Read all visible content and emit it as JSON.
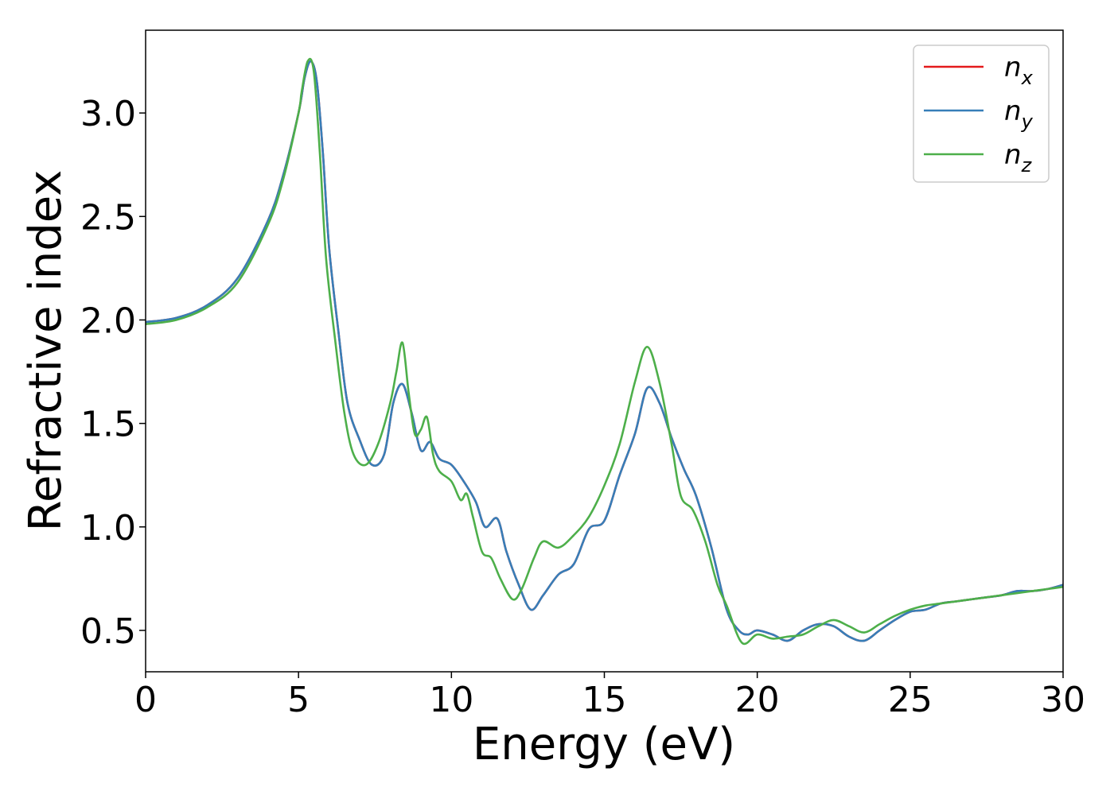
{
  "chart_data": {
    "type": "line",
    "xlabel": "Energy (eV)",
    "ylabel": "Refractive index",
    "xlim": [
      0,
      30
    ],
    "ylim": [
      0.3,
      3.4
    ],
    "x_ticks": [
      "0",
      "5",
      "10",
      "15",
      "20",
      "25",
      "30"
    ],
    "y_ticks": [
      "0.5",
      "1.0",
      "1.5",
      "2.0",
      "2.5",
      "3.0"
    ],
    "grid": false,
    "legend_position": "top-right",
    "series": [
      {
        "name": "n_x",
        "legend_base": "n",
        "legend_sub": "x",
        "color": "#e41a1c",
        "x": [
          0,
          1,
          2,
          3,
          4,
          4.5,
          5,
          5.2,
          5.4,
          5.6,
          5.8,
          6.0,
          6.3,
          6.6,
          7.0,
          7.4,
          7.8,
          8.1,
          8.4,
          8.7,
          9.0,
          9.3,
          9.6,
          10.0,
          10.4,
          10.8,
          11.1,
          11.5,
          11.8,
          12.2,
          12.6,
          13.0,
          13.5,
          14.0,
          14.5,
          15.0,
          15.5,
          16.0,
          16.4,
          16.8,
          17.2,
          17.6,
          18.0,
          18.5,
          19.0,
          19.4,
          19.7,
          20.0,
          20.5,
          21.0,
          21.5,
          22.0,
          22.5,
          23.0,
          23.5,
          24.0,
          24.5,
          25.0,
          25.5,
          26.0,
          26.5,
          27.0,
          27.5,
          28.0,
          28.5,
          29.0,
          29.5,
          30.0
        ],
        "y": [
          1.99,
          2.01,
          2.07,
          2.2,
          2.48,
          2.7,
          3.0,
          3.17,
          3.25,
          3.15,
          2.8,
          2.35,
          1.95,
          1.6,
          1.42,
          1.3,
          1.35,
          1.6,
          1.69,
          1.55,
          1.37,
          1.41,
          1.33,
          1.3,
          1.22,
          1.12,
          1.0,
          1.04,
          0.88,
          0.72,
          0.6,
          0.67,
          0.77,
          0.82,
          0.99,
          1.03,
          1.25,
          1.45,
          1.67,
          1.6,
          1.43,
          1.28,
          1.15,
          0.9,
          0.6,
          0.5,
          0.48,
          0.5,
          0.48,
          0.45,
          0.5,
          0.53,
          0.52,
          0.47,
          0.45,
          0.5,
          0.55,
          0.59,
          0.6,
          0.63,
          0.64,
          0.65,
          0.66,
          0.67,
          0.69,
          0.69,
          0.7,
          0.72
        ]
      },
      {
        "name": "n_y",
        "legend_base": "n",
        "legend_sub": "y",
        "color": "#377eb8",
        "x": [
          0,
          1,
          2,
          3,
          4,
          4.5,
          5,
          5.2,
          5.4,
          5.6,
          5.8,
          6.0,
          6.3,
          6.6,
          7.0,
          7.4,
          7.8,
          8.1,
          8.4,
          8.7,
          9.0,
          9.3,
          9.6,
          10.0,
          10.4,
          10.8,
          11.1,
          11.5,
          11.8,
          12.2,
          12.6,
          13.0,
          13.5,
          14.0,
          14.5,
          15.0,
          15.5,
          16.0,
          16.4,
          16.8,
          17.2,
          17.6,
          18.0,
          18.5,
          19.0,
          19.4,
          19.7,
          20.0,
          20.5,
          21.0,
          21.5,
          22.0,
          22.5,
          23.0,
          23.5,
          24.0,
          24.5,
          25.0,
          25.5,
          26.0,
          26.5,
          27.0,
          27.5,
          28.0,
          28.5,
          29.0,
          29.5,
          30.0
        ],
        "y": [
          1.99,
          2.01,
          2.07,
          2.2,
          2.48,
          2.7,
          3.0,
          3.17,
          3.25,
          3.15,
          2.8,
          2.35,
          1.95,
          1.6,
          1.42,
          1.3,
          1.35,
          1.6,
          1.69,
          1.55,
          1.37,
          1.41,
          1.33,
          1.3,
          1.22,
          1.12,
          1.0,
          1.04,
          0.88,
          0.72,
          0.6,
          0.67,
          0.77,
          0.82,
          0.99,
          1.03,
          1.25,
          1.45,
          1.67,
          1.6,
          1.43,
          1.28,
          1.15,
          0.9,
          0.6,
          0.5,
          0.48,
          0.5,
          0.48,
          0.45,
          0.5,
          0.53,
          0.52,
          0.47,
          0.45,
          0.5,
          0.55,
          0.59,
          0.6,
          0.63,
          0.64,
          0.65,
          0.66,
          0.67,
          0.69,
          0.69,
          0.7,
          0.72
        ]
      },
      {
        "name": "n_z",
        "legend_base": "n",
        "legend_sub": "z",
        "color": "#4daf4a",
        "x": [
          0,
          1,
          2,
          3,
          4,
          4.5,
          5,
          5.1,
          5.3,
          5.5,
          5.7,
          5.9,
          6.2,
          6.5,
          6.8,
          7.2,
          7.6,
          8.0,
          8.2,
          8.4,
          8.6,
          8.8,
          9.0,
          9.2,
          9.4,
          9.6,
          10.0,
          10.3,
          10.5,
          10.7,
          11.0,
          11.3,
          11.6,
          12.0,
          12.3,
          12.7,
          13.0,
          13.5,
          14.0,
          14.5,
          15.0,
          15.5,
          16.0,
          16.4,
          16.8,
          17.2,
          17.5,
          17.9,
          18.3,
          18.7,
          19.0,
          19.5,
          20.0,
          20.5,
          21.0,
          21.5,
          22.0,
          22.5,
          23.0,
          23.5,
          24.0,
          24.5,
          25.0,
          25.5,
          26.0,
          26.5,
          27.0,
          27.5,
          28.0,
          28.5,
          29.0,
          29.5,
          30.0
        ],
        "y": [
          1.98,
          2.0,
          2.06,
          2.18,
          2.46,
          2.68,
          3.0,
          3.1,
          3.25,
          3.2,
          2.8,
          2.3,
          1.9,
          1.55,
          1.35,
          1.3,
          1.4,
          1.6,
          1.75,
          1.89,
          1.65,
          1.45,
          1.47,
          1.53,
          1.35,
          1.27,
          1.22,
          1.13,
          1.16,
          1.05,
          0.88,
          0.85,
          0.75,
          0.65,
          0.7,
          0.85,
          0.93,
          0.9,
          0.96,
          1.05,
          1.2,
          1.4,
          1.7,
          1.87,
          1.7,
          1.4,
          1.15,
          1.08,
          0.93,
          0.72,
          0.62,
          0.44,
          0.48,
          0.46,
          0.47,
          0.48,
          0.52,
          0.55,
          0.52,
          0.49,
          0.53,
          0.57,
          0.6,
          0.62,
          0.63,
          0.64,
          0.65,
          0.66,
          0.67,
          0.68,
          0.69,
          0.7,
          0.71
        ]
      }
    ]
  }
}
